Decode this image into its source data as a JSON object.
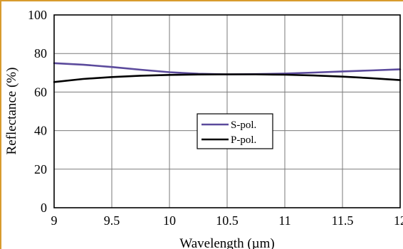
{
  "chart_data": {
    "type": "line",
    "title": "",
    "xlabel": "Wavelength (µm)",
    "ylabel": "Reflectance (%)",
    "xlim": [
      9,
      12
    ],
    "ylim": [
      0,
      100
    ],
    "xticks": [
      "9",
      "9.5",
      "10",
      "10.5",
      "11",
      "11.5",
      "12"
    ],
    "yticks": [
      "0",
      "20",
      "40",
      "60",
      "80",
      "100"
    ],
    "grid": true,
    "legend_position": "center",
    "series": [
      {
        "name": "S-pol.",
        "color": "#5b4a9c",
        "x": [
          9.0,
          9.25,
          9.5,
          9.75,
          10.0,
          10.25,
          10.5,
          10.75,
          11.0,
          11.25,
          11.5,
          11.75,
          12.0
        ],
        "y": [
          75.0,
          74.2,
          73.0,
          71.6,
          70.3,
          69.5,
          69.2,
          69.3,
          69.6,
          70.1,
          70.7,
          71.2,
          71.8
        ]
      },
      {
        "name": "P-pol.",
        "color": "#000000",
        "x": [
          9.0,
          9.25,
          9.5,
          9.75,
          10.0,
          10.25,
          10.5,
          10.75,
          11.0,
          11.25,
          11.5,
          11.75,
          12.0
        ],
        "y": [
          65.2,
          66.8,
          67.8,
          68.5,
          68.9,
          69.1,
          69.2,
          69.2,
          69.0,
          68.6,
          68.0,
          67.2,
          66.2
        ]
      }
    ]
  }
}
